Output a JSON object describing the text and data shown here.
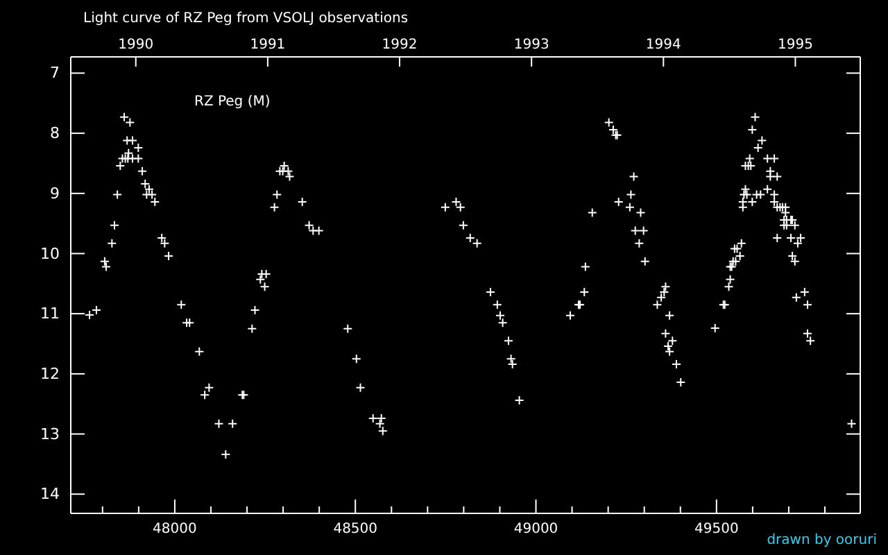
{
  "chart_data": {
    "type": "scatter",
    "title": "Light curve of RZ Peg from VSOLJ observations",
    "annotations": [
      "RZ Peg (M)",
      "drawn by ooruri"
    ],
    "marker": "cross",
    "grid": false,
    "xlim": [
      47712,
      49898
    ],
    "ylim": [
      14.32,
      6.73
    ],
    "xticks": [
      {
        "value": 47800,
        "label": null
      },
      {
        "value": 47900,
        "label": null
      },
      48000,
      {
        "value": 48100,
        "label": null
      },
      {
        "value": 48200,
        "label": null
      },
      {
        "value": 48300,
        "label": null
      },
      {
        "value": 48400,
        "label": null
      },
      48500,
      {
        "value": 48600,
        "label": null
      },
      {
        "value": 48700,
        "label": null
      },
      {
        "value": 48800,
        "label": null
      },
      {
        "value": 48900,
        "label": null
      },
      49000,
      {
        "value": 49100,
        "label": null
      },
      {
        "value": 49200,
        "label": null
      },
      {
        "value": 49300,
        "label": null
      },
      {
        "value": 49400,
        "label": null
      },
      49500,
      {
        "value": 49600,
        "label": null
      },
      {
        "value": 49700,
        "label": null
      },
      {
        "value": 49800,
        "label": null
      }
    ],
    "x2lim": [
      1989.507,
      1995.492
    ],
    "x2ticks": [
      1990,
      1991,
      1992,
      1993,
      1994,
      1995
    ],
    "yticks": [
      7,
      8,
      9,
      10,
      11,
      12,
      13,
      14
    ],
    "series": [
      {
        "color": "#ffffff",
        "x": [
          47764,
          47783,
          47806,
          47810,
          47826,
          47833,
          47841,
          47849,
          47855,
          47860,
          47863,
          47868,
          47870,
          47872,
          47876,
          47883,
          47883,
          47899,
          47899,
          47910,
          47918,
          47922,
          47929,
          47937,
          47945,
          47964,
          47972,
          47983,
          48018,
          48033,
          48041,
          48068,
          48083,
          48095,
          48122,
          48141,
          48160,
          48187,
          48191,
          48214,
          48222,
          48237,
          48241,
          48249,
          48253,
          48276,
          48283,
          48291,
          48299,
          48303,
          48314,
          48318,
          48353,
          48372,
          48383,
          48399,
          48479,
          48503,
          48514,
          48549,
          48568,
          48572,
          48576,
          48749,
          48779,
          48791,
          48799,
          48818,
          48837,
          48874,
          48893,
          48901,
          48908,
          48924,
          48931,
          48935,
          48954,
          49095,
          49118,
          49122,
          49134,
          49137,
          49156,
          49202,
          49214,
          49221,
          49225,
          49229,
          49260,
          49263,
          49271,
          49275,
          49286,
          49290,
          49298,
          49302,
          49336,
          49347,
          49355,
          49359,
          49359,
          49366,
          49370,
          49370,
          49378,
          49389,
          49401,
          49496,
          49519,
          49523,
          49534,
          49538,
          49538,
          49542,
          49546,
          49553,
          49550,
          49557,
          49565,
          49569,
          49573,
          49573,
          49576,
          49580,
          49584,
          49580,
          49588,
          49595,
          49592,
          49599,
          49599,
          49607,
          49611,
          49615,
          49622,
          49626,
          49641,
          49641,
          49649,
          49649,
          49660,
          49660,
          49660,
          49668,
          49668,
          49668,
          49676,
          49683,
          49691,
          49691,
          49687,
          49694,
          49687,
          49694,
          49706,
          49710,
          49706,
          49710,
          49717,
          49717,
          49721,
          49725,
          49733,
          49744,
          49752,
          49752,
          49760,
          49874
        ],
        "values": [
          11.02,
          10.94,
          10.13,
          10.22,
          9.83,
          9.53,
          9.02,
          8.54,
          8.42,
          7.73,
          8.42,
          8.12,
          8.42,
          8.33,
          7.82,
          8.12,
          8.42,
          8.24,
          8.42,
          8.63,
          8.84,
          9.02,
          8.93,
          9.02,
          9.14,
          9.74,
          9.83,
          10.04,
          10.85,
          11.15,
          11.15,
          11.63,
          12.35,
          12.23,
          12.83,
          13.34,
          12.83,
          12.35,
          12.35,
          11.25,
          10.94,
          10.43,
          10.34,
          10.55,
          10.34,
          9.23,
          9.02,
          8.63,
          8.63,
          8.54,
          8.63,
          8.72,
          9.14,
          9.53,
          9.62,
          9.62,
          11.25,
          11.75,
          12.23,
          12.74,
          12.83,
          12.74,
          12.95,
          9.23,
          9.14,
          9.23,
          9.53,
          9.74,
          9.83,
          10.64,
          10.85,
          11.03,
          11.15,
          11.45,
          11.75,
          11.84,
          12.44,
          11.03,
          10.85,
          10.85,
          10.64,
          10.22,
          9.32,
          7.82,
          7.94,
          8.03,
          8.03,
          9.14,
          9.23,
          9.02,
          8.72,
          9.62,
          9.83,
          9.32,
          9.62,
          10.13,
          10.85,
          10.73,
          10.64,
          10.55,
          11.33,
          11.54,
          11.03,
          11.63,
          11.45,
          11.84,
          12.14,
          11.24,
          10.85,
          10.85,
          10.55,
          10.43,
          10.22,
          10.22,
          10.13,
          10.13,
          9.92,
          9.92,
          10.04,
          9.83,
          9.23,
          9.14,
          9.02,
          8.93,
          9.02,
          8.54,
          8.54,
          8.54,
          8.42,
          9.14,
          7.94,
          7.73,
          9.02,
          8.24,
          9.02,
          8.12,
          8.42,
          8.93,
          8.63,
          8.72,
          8.42,
          9.02,
          9.14,
          8.72,
          9.23,
          9.74,
          9.23,
          9.23,
          9.23,
          9.32,
          9.44,
          9.44,
          9.53,
          9.53,
          9.44,
          9.44,
          9.74,
          10.04,
          9.53,
          10.13,
          10.73,
          9.83,
          9.74,
          10.64,
          10.85,
          11.33,
          11.45,
          12.83
        ]
      }
    ]
  }
}
